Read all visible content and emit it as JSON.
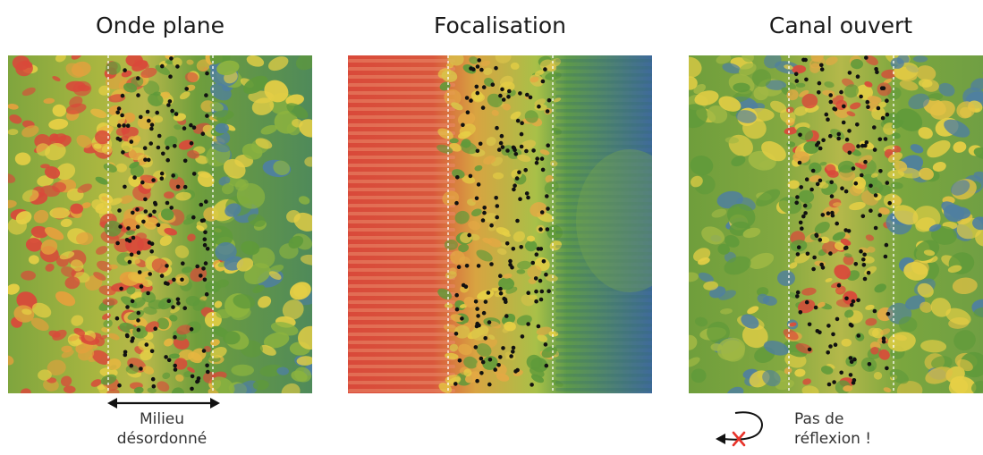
{
  "panels": [
    {
      "title": "Onde plane",
      "left": 9,
      "scheme": "plane"
    },
    {
      "title": "Focalisation",
      "left": 389,
      "scheme": "focus"
    },
    {
      "title": "Canal ouvert",
      "left": 770,
      "scheme": "channel"
    }
  ],
  "annotations": {
    "medium_line1": "Milieu",
    "medium_line2": "désordonné",
    "noreflect_line1": "Pas de",
    "noreflect_line2": "réflexion !"
  },
  "colors": {
    "red": "#d9493a",
    "yellow": "#e6cf45",
    "green": "#5f9a3a",
    "blue": "#3e5f9e",
    "scatterer": "#111111",
    "cross": "#e8332a"
  }
}
